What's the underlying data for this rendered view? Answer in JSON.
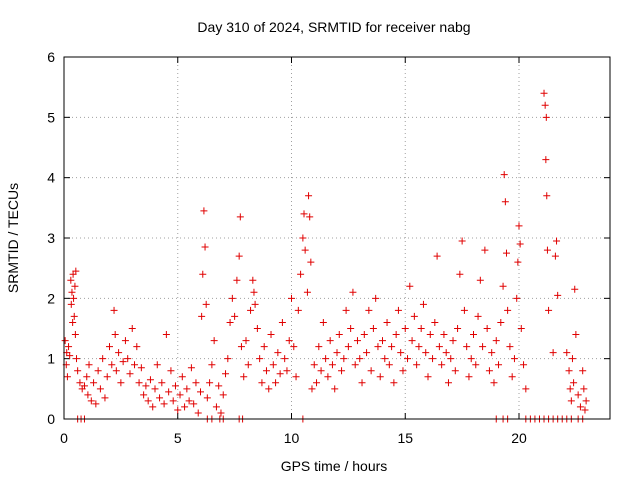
{
  "chart_data": {
    "type": "scatter",
    "title": "Day 310 of 2024, SRMTID for receiver nabg",
    "xlabel": "GPS time / hours",
    "ylabel": "SRMTID / TECUs",
    "xlim": [
      0,
      24
    ],
    "ylim": [
      0,
      6
    ],
    "xticks": [
      0,
      5,
      10,
      15,
      20
    ],
    "xtick_labels": [
      "0",
      "5",
      "10",
      "15",
      "20"
    ],
    "yticks": [
      0,
      1,
      2,
      3,
      4,
      5,
      6
    ],
    "ytick_labels": [
      "0",
      "1",
      "2",
      "3",
      "4",
      "5",
      "6"
    ],
    "grid": true,
    "marker": "+",
    "marker_color": "#e00000",
    "series": [
      {
        "name": "SRMTID",
        "points": [
          [
            0.05,
            1.3
          ],
          [
            0.1,
            0.9
          ],
          [
            0.12,
            1.1
          ],
          [
            0.15,
            0.7
          ],
          [
            0.2,
            1.2
          ],
          [
            0.25,
            1.05
          ],
          [
            0.3,
            2.3
          ],
          [
            0.32,
            1.9
          ],
          [
            0.35,
            2.1
          ],
          [
            0.38,
            1.6
          ],
          [
            0.4,
            2.4
          ],
          [
            0.42,
            2.0
          ],
          [
            0.45,
            1.7
          ],
          [
            0.48,
            2.2
          ],
          [
            0.5,
            1.4
          ],
          [
            0.52,
            2.45
          ],
          [
            0.55,
            1.0
          ],
          [
            0.6,
            0.8
          ],
          [
            0.7,
            0.6
          ],
          [
            0.8,
            0.5
          ],
          [
            0.9,
            0.55
          ],
          [
            1.0,
            0.7
          ],
          [
            1.05,
            0.4
          ],
          [
            1.1,
            0.9
          ],
          [
            1.2,
            0.3
          ],
          [
            1.3,
            0.6
          ],
          [
            1.4,
            0.25
          ],
          [
            1.5,
            0.8
          ],
          [
            1.6,
            0.5
          ],
          [
            1.7,
            1.0
          ],
          [
            1.8,
            0.35
          ],
          [
            1.9,
            0.7
          ],
          [
            2.0,
            1.2
          ],
          [
            2.1,
            0.9
          ],
          [
            2.2,
            1.8
          ],
          [
            2.25,
            1.4
          ],
          [
            2.3,
            0.8
          ],
          [
            2.4,
            1.1
          ],
          [
            2.5,
            0.6
          ],
          [
            2.6,
            0.95
          ],
          [
            2.7,
            1.3
          ],
          [
            2.8,
            1.0
          ],
          [
            2.9,
            0.75
          ],
          [
            3.0,
            1.5
          ],
          [
            3.1,
            0.9
          ],
          [
            3.2,
            1.2
          ],
          [
            3.3,
            0.6
          ],
          [
            3.4,
            0.85
          ],
          [
            3.5,
            0.4
          ],
          [
            3.6,
            0.55
          ],
          [
            3.7,
            0.3
          ],
          [
            3.8,
            0.65
          ],
          [
            3.9,
            0.2
          ],
          [
            4.0,
            0.5
          ],
          [
            4.1,
            0.9
          ],
          [
            4.2,
            0.35
          ],
          [
            4.3,
            0.6
          ],
          [
            4.4,
            0.25
          ],
          [
            4.5,
            1.4
          ],
          [
            4.6,
            0.45
          ],
          [
            4.7,
            0.8
          ],
          [
            4.8,
            0.3
          ],
          [
            4.9,
            0.55
          ],
          [
            5.0,
            0.15
          ],
          [
            5.1,
            0.4
          ],
          [
            5.2,
            0.7
          ],
          [
            5.3,
            0.2
          ],
          [
            5.4,
            0.5
          ],
          [
            5.5,
            0.3
          ],
          [
            5.6,
            0.85
          ],
          [
            5.7,
            0.25
          ],
          [
            5.8,
            0.6
          ],
          [
            5.9,
            0.1
          ],
          [
            6.0,
            0.45
          ],
          [
            6.05,
            1.7
          ],
          [
            6.1,
            2.4
          ],
          [
            6.15,
            3.45
          ],
          [
            6.2,
            2.85
          ],
          [
            6.25,
            1.9
          ],
          [
            6.3,
            0.35
          ],
          [
            6.4,
            0.6
          ],
          [
            6.5,
            0.9
          ],
          [
            6.6,
            1.3
          ],
          [
            6.7,
            0.2
          ],
          [
            6.8,
            0.55
          ],
          [
            6.9,
            0.1
          ],
          [
            7.0,
            0.4
          ],
          [
            7.1,
            0.75
          ],
          [
            7.2,
            1.0
          ],
          [
            7.3,
            1.6
          ],
          [
            7.4,
            2.0
          ],
          [
            7.5,
            1.7
          ],
          [
            7.6,
            2.3
          ],
          [
            7.7,
            2.7
          ],
          [
            7.75,
            3.35
          ],
          [
            7.8,
            1.2
          ],
          [
            7.9,
            0.7
          ],
          [
            8.0,
            1.3
          ],
          [
            8.1,
            0.9
          ],
          [
            8.2,
            1.8
          ],
          [
            8.3,
            2.3
          ],
          [
            8.35,
            2.1
          ],
          [
            8.4,
            1.9
          ],
          [
            8.5,
            1.5
          ],
          [
            8.6,
            1.0
          ],
          [
            8.7,
            0.6
          ],
          [
            8.8,
            1.2
          ],
          [
            8.9,
            0.8
          ],
          [
            9.0,
            0.5
          ],
          [
            9.1,
            1.4
          ],
          [
            9.2,
            0.9
          ],
          [
            9.3,
            0.6
          ],
          [
            9.4,
            1.1
          ],
          [
            9.5,
            0.75
          ],
          [
            9.6,
            1.6
          ],
          [
            9.7,
            1.0
          ],
          [
            9.8,
            0.8
          ],
          [
            9.9,
            1.3
          ],
          [
            10.0,
            2.0
          ],
          [
            10.1,
            1.2
          ],
          [
            10.2,
            0.7
          ],
          [
            10.3,
            1.8
          ],
          [
            10.4,
            2.4
          ],
          [
            10.5,
            3.0
          ],
          [
            10.55,
            3.4
          ],
          [
            10.6,
            2.8
          ],
          [
            10.7,
            2.1
          ],
          [
            10.75,
            3.7
          ],
          [
            10.8,
            3.35
          ],
          [
            10.85,
            2.6
          ],
          [
            10.9,
            0.5
          ],
          [
            11.0,
            0.9
          ],
          [
            11.1,
            0.6
          ],
          [
            11.2,
            1.2
          ],
          [
            11.3,
            0.8
          ],
          [
            11.4,
            1.6
          ],
          [
            11.5,
            1.0
          ],
          [
            11.6,
            0.7
          ],
          [
            11.7,
            1.3
          ],
          [
            11.8,
            0.9
          ],
          [
            11.9,
            0.5
          ],
          [
            12.0,
            1.1
          ],
          [
            12.1,
            1.4
          ],
          [
            12.2,
            0.8
          ],
          [
            12.3,
            1.0
          ],
          [
            12.4,
            1.8
          ],
          [
            12.5,
            1.2
          ],
          [
            12.6,
            1.5
          ],
          [
            12.7,
            2.1
          ],
          [
            12.8,
            0.9
          ],
          [
            12.9,
            1.3
          ],
          [
            13.0,
            1.0
          ],
          [
            13.1,
            0.6
          ],
          [
            13.2,
            1.4
          ],
          [
            13.3,
            1.1
          ],
          [
            13.4,
            1.8
          ],
          [
            13.5,
            0.8
          ],
          [
            13.6,
            1.5
          ],
          [
            13.7,
            2.0
          ],
          [
            13.8,
            1.2
          ],
          [
            13.9,
            0.7
          ],
          [
            14.0,
            1.3
          ],
          [
            14.1,
            1.0
          ],
          [
            14.2,
            1.6
          ],
          [
            14.3,
            0.9
          ],
          [
            14.4,
            1.2
          ],
          [
            14.5,
            0.6
          ],
          [
            14.6,
            1.4
          ],
          [
            14.7,
            1.8
          ],
          [
            14.8,
            1.1
          ],
          [
            14.9,
            0.8
          ],
          [
            15.0,
            1.5
          ],
          [
            15.1,
            1.0
          ],
          [
            15.2,
            2.2
          ],
          [
            15.3,
            1.3
          ],
          [
            15.4,
            1.7
          ],
          [
            15.5,
            0.9
          ],
          [
            15.6,
            1.2
          ],
          [
            15.7,
            1.5
          ],
          [
            15.8,
            1.9
          ],
          [
            15.9,
            1.1
          ],
          [
            16.0,
            0.7
          ],
          [
            16.1,
            1.4
          ],
          [
            16.2,
            1.0
          ],
          [
            16.3,
            1.6
          ],
          [
            16.4,
            2.7
          ],
          [
            16.5,
            1.2
          ],
          [
            16.6,
            0.9
          ],
          [
            16.7,
            1.4
          ],
          [
            16.8,
            1.1
          ],
          [
            16.9,
            0.6
          ],
          [
            17.0,
            1.0
          ],
          [
            17.1,
            1.3
          ],
          [
            17.2,
            0.8
          ],
          [
            17.3,
            1.5
          ],
          [
            17.4,
            2.4
          ],
          [
            17.5,
            2.95
          ],
          [
            17.6,
            1.8
          ],
          [
            17.7,
            1.2
          ],
          [
            17.8,
            0.7
          ],
          [
            17.9,
            1.0
          ],
          [
            18.0,
            1.4
          ],
          [
            18.1,
            0.9
          ],
          [
            18.2,
            1.7
          ],
          [
            18.3,
            2.3
          ],
          [
            18.4,
            1.2
          ],
          [
            18.5,
            2.8
          ],
          [
            18.6,
            1.5
          ],
          [
            18.7,
            0.8
          ],
          [
            18.8,
            1.1
          ],
          [
            18.9,
            0.6
          ],
          [
            19.0,
            1.3
          ],
          [
            19.1,
            0.9
          ],
          [
            19.2,
            1.6
          ],
          [
            19.3,
            2.2
          ],
          [
            19.35,
            4.05
          ],
          [
            19.4,
            3.6
          ],
          [
            19.45,
            2.75
          ],
          [
            19.5,
            1.8
          ],
          [
            19.6,
            1.2
          ],
          [
            19.7,
            0.7
          ],
          [
            19.8,
            1.0
          ],
          [
            19.9,
            2.0
          ],
          [
            19.95,
            2.6
          ],
          [
            20.0,
            3.2
          ],
          [
            20.05,
            2.9
          ],
          [
            20.1,
            1.5
          ],
          [
            20.2,
            0.9
          ],
          [
            20.3,
            0.5
          ],
          [
            21.1,
            5.4
          ],
          [
            21.15,
            5.2
          ],
          [
            21.2,
            5.0
          ],
          [
            21.18,
            4.3
          ],
          [
            21.22,
            3.7
          ],
          [
            21.25,
            2.8
          ],
          [
            21.3,
            1.8
          ],
          [
            21.5,
            1.1
          ],
          [
            21.6,
            2.7
          ],
          [
            21.65,
            2.95
          ],
          [
            21.7,
            2.05
          ],
          [
            22.1,
            1.1
          ],
          [
            22.2,
            0.8
          ],
          [
            22.25,
            0.5
          ],
          [
            22.3,
            0.3
          ],
          [
            22.35,
            1.0
          ],
          [
            22.4,
            0.6
          ],
          [
            22.45,
            2.15
          ],
          [
            22.5,
            1.4
          ],
          [
            22.6,
            0.4
          ],
          [
            22.7,
            0.2
          ],
          [
            22.8,
            0.8
          ],
          [
            22.85,
            0.5
          ],
          [
            22.9,
            0.15
          ],
          [
            22.95,
            0.3
          ],
          [
            0.6,
            0.0
          ],
          [
            0.75,
            0.0
          ],
          [
            0.9,
            0.0
          ],
          [
            6.3,
            0.0
          ],
          [
            6.5,
            0.0
          ],
          [
            6.85,
            0.0
          ],
          [
            7.0,
            0.0
          ],
          [
            7.7,
            0.0
          ],
          [
            7.85,
            0.0
          ],
          [
            10.5,
            0.0
          ],
          [
            19.0,
            0.0
          ],
          [
            19.3,
            0.0
          ],
          [
            19.5,
            0.0
          ],
          [
            20.3,
            0.0
          ],
          [
            20.5,
            0.0
          ],
          [
            20.7,
            0.0
          ],
          [
            20.9,
            0.0
          ],
          [
            21.1,
            0.0
          ],
          [
            21.3,
            0.0
          ],
          [
            21.5,
            0.0
          ],
          [
            21.7,
            0.0
          ],
          [
            21.9,
            0.0
          ],
          [
            22.1,
            0.0
          ],
          [
            22.3,
            0.0
          ],
          [
            22.6,
            0.0
          ],
          [
            22.8,
            0.0
          ]
        ]
      }
    ]
  }
}
